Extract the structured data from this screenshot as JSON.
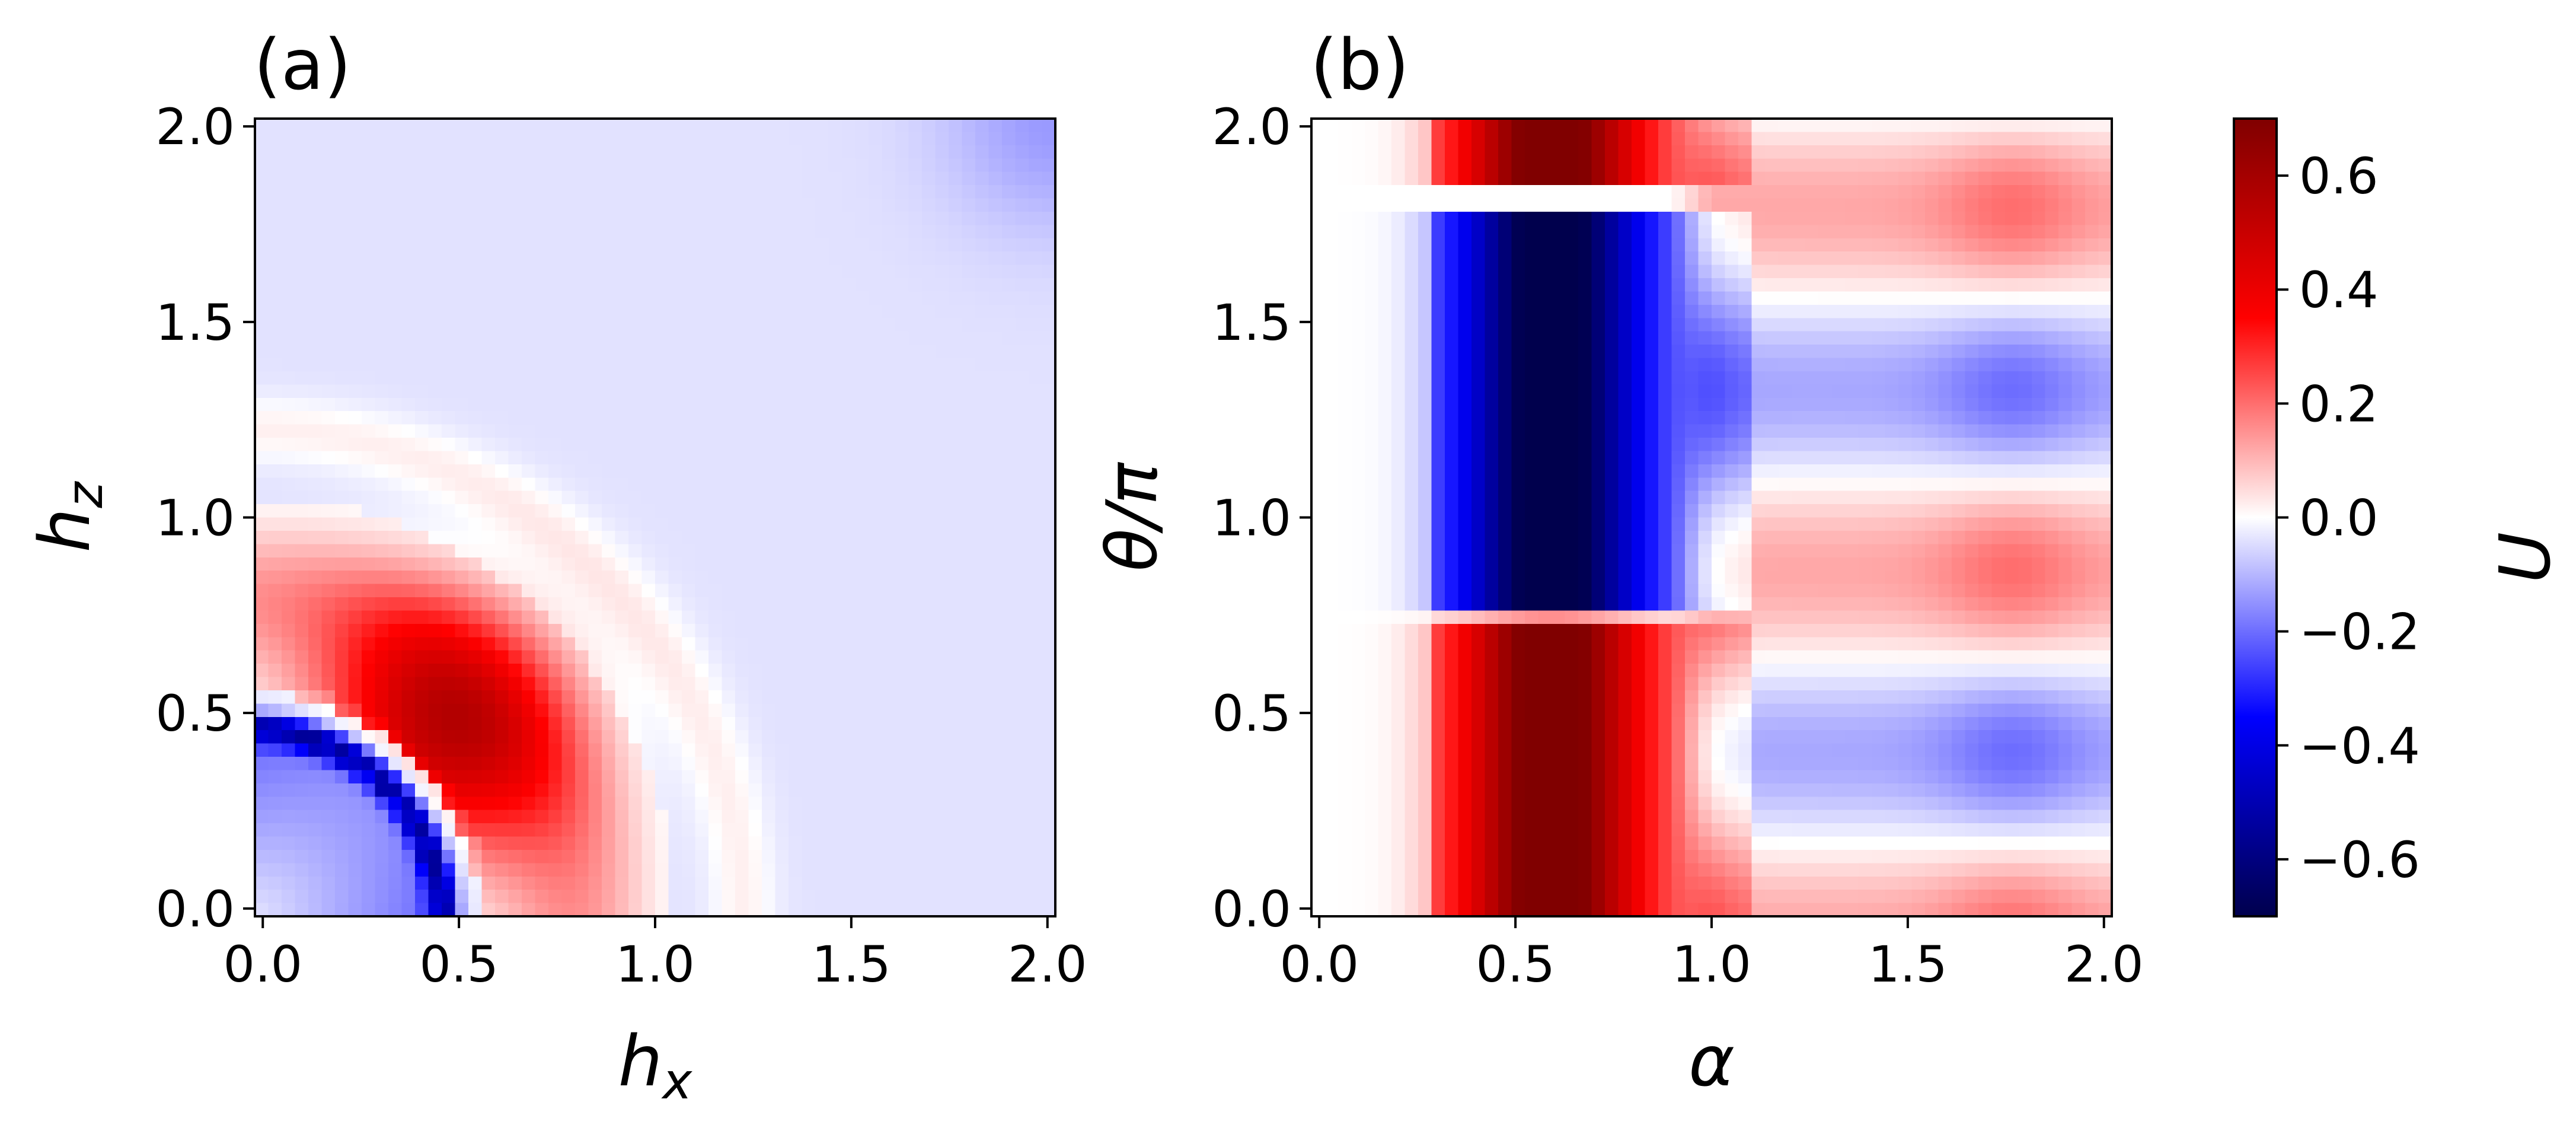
{
  "chart_data": [
    {
      "type": "heatmap",
      "panel_label": "(a)",
      "xlabel_base": "h",
      "xlabel_sub": "x",
      "ylabel_base": "h",
      "ylabel_sub": "z",
      "xlim": [
        0,
        2
      ],
      "ylim": [
        0,
        2
      ],
      "xticks": [
        "0.0",
        "0.5",
        "1.0",
        "1.5",
        "2.0"
      ],
      "yticks": [
        "0.0",
        "0.5",
        "1.0",
        "1.5",
        "2.0"
      ],
      "grid": false,
      "colormap": "seismic",
      "description_of_values": {
        "low_arc_center_radius": 0.5,
        "low_arc_value": -0.5,
        "broad_positive_peak": {
          "hx": 0.4,
          "hz": 0.5,
          "value": 0.45
        },
        "faint_positive_ring_radius": 1.25,
        "background_value": -0.04,
        "upper_right_corner_value": -0.12
      }
    },
    {
      "type": "heatmap",
      "panel_label": "(b)",
      "xlabel": "α",
      "ylabel": "θ/π",
      "xlim": [
        0,
        2
      ],
      "ylim": [
        0,
        2
      ],
      "xticks": [
        "0.0",
        "0.5",
        "1.0",
        "1.5",
        "2.0"
      ],
      "yticks": [
        "0.0",
        "0.5",
        "1.0",
        "1.5",
        "2.0"
      ],
      "grid": false,
      "colormap": "seismic",
      "description_of_values": {
        "positive_lobe_theta_range": [
          0,
          0.72
        ],
        "negative_lobe_theta_range": [
          0.78,
          1.75
        ],
        "positive_lobe_upper_theta_range": [
          1.82,
          2.0
        ],
        "lobe_peak_alpha": 0.6,
        "peak_value": 0.6,
        "fringe_bands_alpha_range": [
          1.0,
          2.0
        ]
      }
    }
  ],
  "colorbar": {
    "label": "U",
    "vmin": -0.7,
    "vmax": 0.7,
    "ticks": [
      0.6,
      0.4,
      0.2,
      0.0,
      -0.2,
      -0.4,
      -0.6
    ],
    "tick_labels": [
      "0.6",
      "0.4",
      "0.2",
      "0.0",
      "−0.2",
      "−0.4",
      "−0.6"
    ]
  }
}
